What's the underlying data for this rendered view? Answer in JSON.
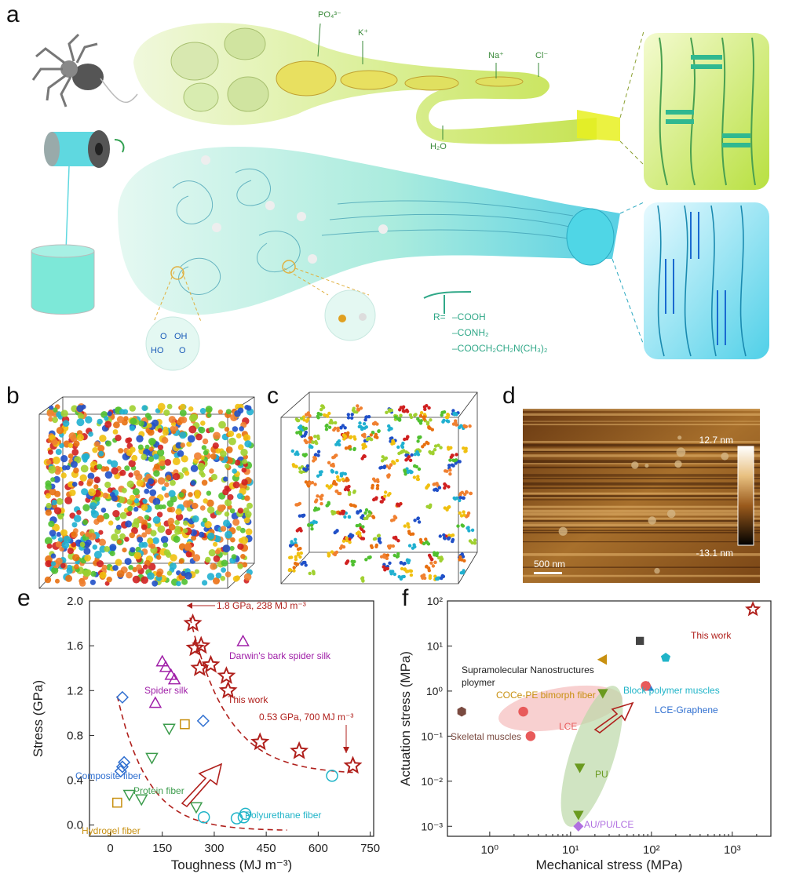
{
  "figure": {
    "panel_labels": {
      "a": "a",
      "b": "b",
      "c": "c",
      "d": "d",
      "e": "e",
      "f": "f"
    }
  },
  "panel_a": {
    "ions": {
      "phosphate": "PO₄³⁻",
      "potassium": "K⁺",
      "sodium": "Na⁺",
      "chloride": "Cl⁻",
      "water": "H₂O"
    },
    "chem_acid_pair": {
      "l1": "OH",
      "l2": "O",
      "l3": "HO",
      "l4": "O"
    },
    "r_groups": {
      "prefix": "R=",
      "g1": "–COOH",
      "g2": "–CONH₂",
      "g3": "–COOCH₂CH₂N(CH₃)₂"
    },
    "colors": {
      "silk_gland": "#c6e04a",
      "fiber_bath": "#3ccfb8",
      "fiber_cyan": "#4fd6e6"
    }
  },
  "panel_d": {
    "scale_max": "12.7 nm",
    "scale_min": "-13.1 nm",
    "scale_bar": "500 nm"
  },
  "chart_data": [
    {
      "type": "scatter",
      "panel": "e",
      "title": "",
      "xlabel": "Toughness (MJ m⁻³)",
      "ylabel": "Stress (GPa)",
      "xlim": [
        -60,
        760
      ],
      "ylim": [
        -0.1,
        2.0
      ],
      "xticks": [
        "0",
        "150",
        "300",
        "450",
        "600",
        "750"
      ],
      "xtick_values": [
        0,
        150,
        300,
        450,
        600,
        750
      ],
      "yticks": [
        "0.0",
        "0.4",
        "0.8",
        "1.2",
        "1.6",
        "2.0"
      ],
      "ytick_values": [
        0,
        0.4,
        0.8,
        1.2,
        1.6,
        2.0
      ],
      "series": [
        {
          "name": "This work",
          "marker": "star",
          "color": "#b0201c",
          "points": [
            [
              238,
              1.8
            ],
            [
              245,
              1.58
            ],
            [
              262,
              1.6
            ],
            [
              258,
              1.4
            ],
            [
              290,
              1.43
            ],
            [
              335,
              1.33
            ],
            [
              340,
              1.2
            ],
            [
              432,
              0.74
            ],
            [
              545,
              0.66
            ],
            [
              700,
              0.53
            ]
          ]
        },
        {
          "name": "Darwin's bark spider silk",
          "marker": "triangle-up",
          "color": "#a020a8",
          "points": [
            [
              383,
              1.64
            ]
          ]
        },
        {
          "name": "Spider silk",
          "marker": "triangle-up",
          "color": "#a020a8",
          "points": [
            [
              150,
              1.46
            ],
            [
              160,
              1.41
            ],
            [
              175,
              1.34
            ],
            [
              185,
              1.3
            ],
            [
              130,
              1.09
            ]
          ]
        },
        {
          "name": "Composite fiber",
          "marker": "diamond",
          "color": "#2f6fd0",
          "points": [
            [
              35,
              1.14
            ],
            [
              40,
              0.56
            ],
            [
              35,
              0.52
            ],
            [
              30,
              0.48
            ],
            [
              268,
              0.93
            ]
          ]
        },
        {
          "name": "Protein fiber",
          "marker": "triangle-down",
          "color": "#3c9c4c",
          "points": [
            [
              170,
              0.86
            ],
            [
              120,
              0.6
            ],
            [
              55,
              0.27
            ],
            [
              90,
              0.23
            ],
            [
              248,
              0.16
            ]
          ]
        },
        {
          "name": "Hydrogel fiber",
          "marker": "square",
          "color": "#c89010",
          "points": [
            [
              215,
              0.9
            ],
            [
              20,
              0.2
            ]
          ]
        },
        {
          "name": "Polyurethane fiber",
          "marker": "circle",
          "color": "#20b4c8",
          "points": [
            [
              270,
              0.07
            ],
            [
              365,
              0.06
            ],
            [
              385,
              0.07
            ],
            [
              390,
              0.1
            ],
            [
              640,
              0.44
            ]
          ]
        }
      ],
      "guides": [
        "dashed curve low",
        "dashed curve high"
      ],
      "annotations": {
        "top": "1.8 GPa, 238 MJ m⁻³",
        "right": "0.53 GPa, 700 MJ m⁻³",
        "this_work": "This work",
        "darwin": "Darwin's bark spider silk",
        "spider": "Spider silk",
        "composite": "Composite fiber",
        "protein": "Protein fiber",
        "hydrogel": "Hydrogel fiber",
        "polyurethane": "Polyurethane fiber"
      }
    },
    {
      "type": "scatter",
      "panel": "f",
      "title": "",
      "xscale": "log",
      "yscale": "log",
      "xlabel": "Mechanical stress (MPa)",
      "ylabel": "Actuation stress (MPa)",
      "xlim": [
        0.3,
        3000
      ],
      "ylim": [
        0.0006,
        100
      ],
      "xticks": [
        "10⁰",
        "10¹",
        "10²",
        "10³"
      ],
      "xtick_values": [
        1,
        10,
        100,
        1000
      ],
      "yticks": [
        "10⁻³",
        "10⁻²",
        "10⁻¹",
        "10⁰",
        "10¹",
        "10²"
      ],
      "ytick_values": [
        0.001,
        0.01,
        0.1,
        1,
        10,
        100
      ],
      "series": [
        {
          "name": "This work",
          "marker": "star",
          "color": "#b0201c",
          "points": [
            [
              1800,
              65
            ]
          ]
        },
        {
          "name": "Supramolecular Nanostructures ploymer",
          "marker": "square",
          "color": "#444444",
          "points": [
            [
              72,
              13
            ]
          ]
        },
        {
          "name": "COCe-PE bimorph fiber",
          "marker": "triangle-left",
          "color": "#c89010",
          "points": [
            [
              25,
              5
            ]
          ]
        },
        {
          "name": "Block polymer muscles",
          "marker": "pentagon",
          "color": "#20b4c8",
          "points": [
            [
              150,
              5.5
            ]
          ]
        },
        {
          "name": "LCE-Graphene",
          "marker": "triangle-up",
          "color": "#2f6fd0",
          "points": [
            [
              92,
              1.25
            ]
          ]
        },
        {
          "name": "LCE",
          "marker": "circle",
          "color": "#e85a5a",
          "points": [
            [
              2.6,
              0.35
            ],
            [
              3.2,
              0.1
            ],
            [
              85,
              1.3
            ]
          ]
        },
        {
          "name": "Skeletal muscles",
          "marker": "hexagon",
          "color": "#7a4a40",
          "points": [
            [
              0.45,
              0.35
            ]
          ]
        },
        {
          "name": "PU",
          "marker": "triangle-down",
          "color": "#6a9a20",
          "points": [
            [
              25,
              0.9
            ],
            [
              13,
              0.02
            ],
            [
              12.5,
              0.0018
            ]
          ]
        },
        {
          "name": "AU/PU/LCE",
          "marker": "diamond",
          "color": "#b070e0",
          "points": [
            [
              12.5,
              0.001
            ]
          ]
        }
      ],
      "labels": {
        "this_work": "This work",
        "supra1": "Supramolecular Nanostructures",
        "supra2": "ploymer",
        "cocepe": "COCe-PE bimorph fiber",
        "block": "Block polymer muscles",
        "lceg": "LCE-Graphene",
        "lce": "LCE",
        "skeletal": "Skeletal muscles",
        "pu": "PU",
        "aupu": "AU/PU/LCE"
      }
    }
  ]
}
